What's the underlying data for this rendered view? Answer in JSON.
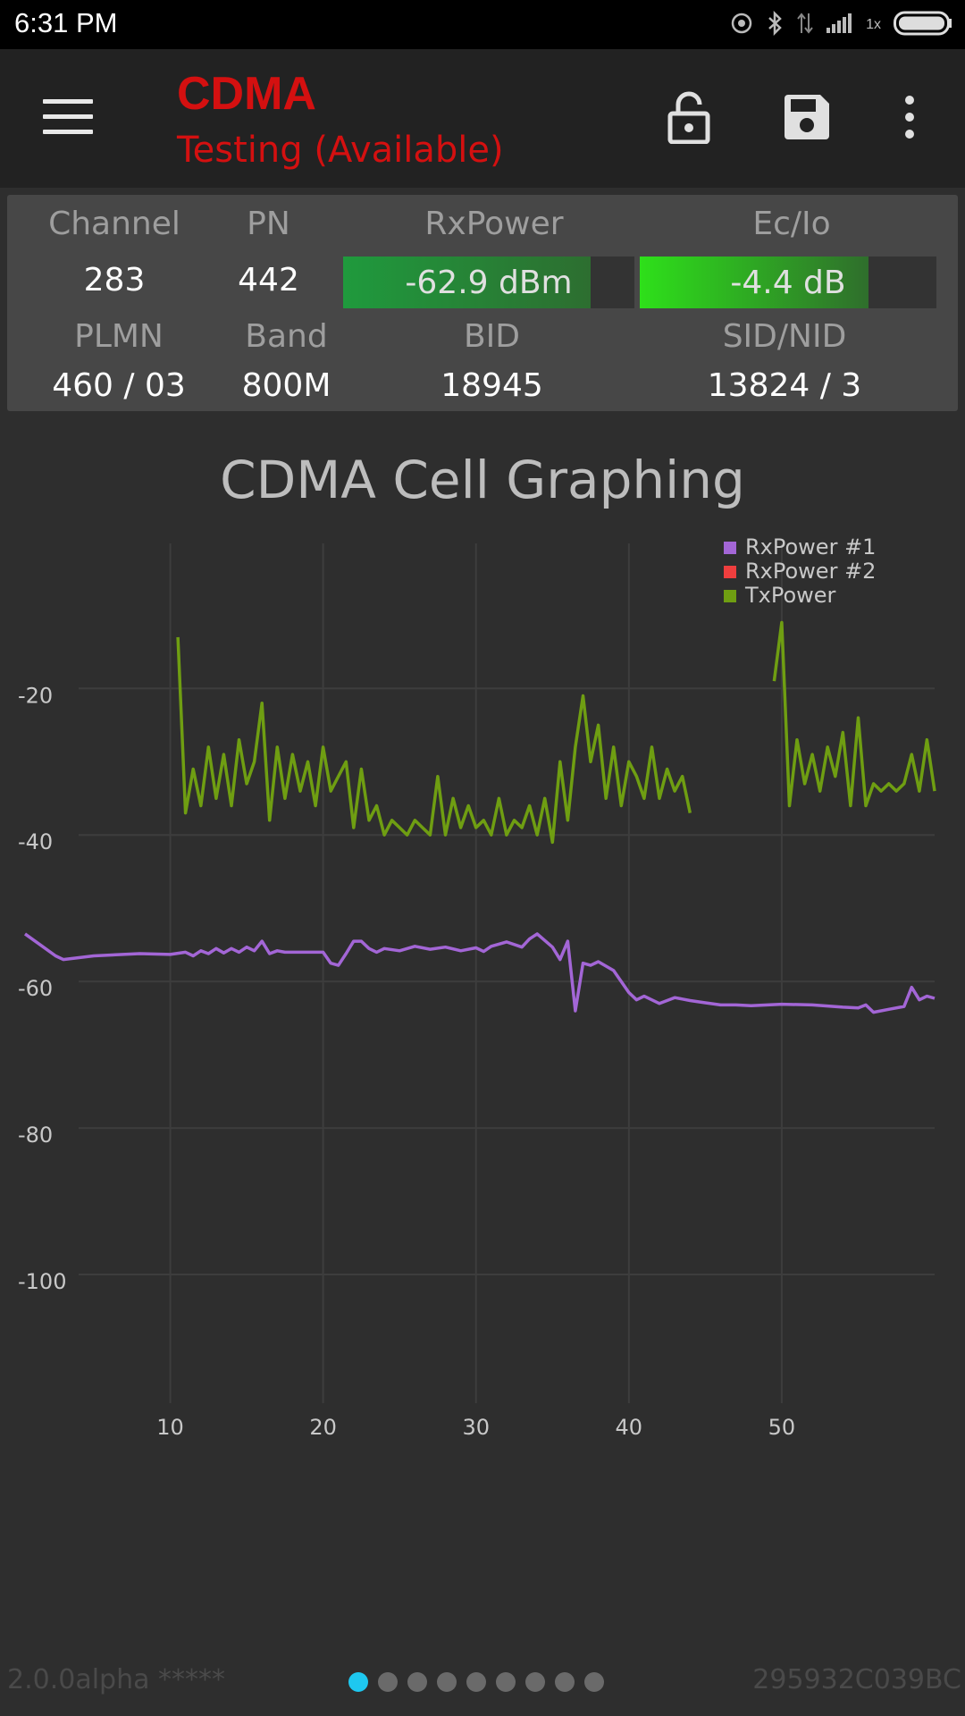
{
  "status_bar": {
    "time": "6:31 PM",
    "network_label": "1x"
  },
  "app_bar": {
    "title": "CDMA",
    "subtitle": "Testing (Available)"
  },
  "panel": {
    "channel": {
      "label": "Channel",
      "value": "283"
    },
    "pn": {
      "label": "PN",
      "value": "442"
    },
    "rxpower": {
      "label": "RxPower",
      "value": "-62.9 dBm",
      "level": 0.85
    },
    "ecio": {
      "label": "Ec/Io",
      "value": "-4.4 dB",
      "level": 0.77
    },
    "plmn": {
      "label": "PLMN",
      "value": "460 / 03"
    },
    "band": {
      "label": "Band",
      "value": "800M"
    },
    "bid": {
      "label": "BID",
      "value": "18945"
    },
    "sidnid": {
      "label": "SID/NID",
      "value": "13824 / 3"
    }
  },
  "colors": {
    "title_red": "#d41010",
    "rx1": "#a366d6",
    "rx2": "#ef3e3e",
    "tx": "#6f9e12",
    "page_dot_active": "#1ec8f0"
  },
  "chart_data": {
    "type": "line",
    "title": "CDMA Cell Graphing",
    "xlim": [
      0.5,
      60
    ],
    "ylim": [
      -120,
      -0.2
    ],
    "xticks": [
      10,
      20,
      30,
      40,
      50
    ],
    "yticks": [
      -20,
      -40,
      -60,
      -80,
      -100
    ],
    "grid": true,
    "legend_position": "top-right",
    "series": [
      {
        "name": "RxPower #1",
        "color": "#a366d6",
        "x": [
          0.5,
          1.5,
          2.5,
          3,
          5,
          8,
          10,
          11,
          11.5,
          12,
          12.5,
          13,
          13.5,
          14,
          14.5,
          15,
          15.5,
          16,
          16.5,
          17,
          17.5,
          18,
          19,
          20,
          20.5,
          21,
          21.5,
          22,
          22.5,
          23,
          23.5,
          24,
          25,
          26,
          27,
          28,
          29,
          30,
          30.5,
          31,
          32,
          33,
          33.5,
          34,
          35,
          35.5,
          36,
          36.5,
          37,
          37.5,
          38,
          39,
          40,
          40.5,
          41,
          42,
          43,
          44,
          45,
          46,
          47,
          48,
          50,
          52,
          54,
          55,
          55.5,
          56,
          57,
          58,
          58.5,
          59,
          59.5,
          60
        ],
        "y": [
          -53.5,
          -55,
          -56.5,
          -57,
          -56.5,
          -56.2,
          -56.3,
          -56,
          -56.5,
          -55.8,
          -56.2,
          -55.5,
          -56.1,
          -55.5,
          -56,
          -55.3,
          -55.8,
          -54.5,
          -56.2,
          -55.8,
          -56,
          -56,
          -56,
          -56,
          -57.5,
          -57.8,
          -56.2,
          -54.5,
          -54.5,
          -55.5,
          -56,
          -55.5,
          -55.8,
          -55.2,
          -55.6,
          -55.3,
          -55.8,
          -55.4,
          -55.9,
          -55.2,
          -54.6,
          -55.3,
          -54.2,
          -53.5,
          -55.3,
          -57,
          -54.5,
          -64,
          -57.5,
          -57.8,
          -57.3,
          -58.5,
          -61.5,
          -62.5,
          -62,
          -63,
          -62.2,
          -62.6,
          -62.9,
          -63.2,
          -63.2,
          -63.3,
          -63.1,
          -63.2,
          -63.5,
          -63.6,
          -63.2,
          -64.2,
          -63.8,
          -63.4,
          -60.8,
          -62.5,
          -62,
          -62.3
        ]
      },
      {
        "name": "RxPower #2",
        "color": "#ef3e3e",
        "x": [],
        "y": []
      },
      {
        "name": "TxPower",
        "color": "#6f9e12",
        "x": [
          10.5,
          11,
          11.5,
          12,
          12.5,
          13,
          13.5,
          14,
          14.5,
          15,
          15.5,
          16,
          16.5,
          17,
          17.5,
          18,
          18.5,
          19,
          19.5,
          20,
          20.5,
          21,
          21.5,
          22,
          22.5,
          23,
          23.5,
          24,
          24.5,
          25,
          25.5,
          26,
          26.5,
          27,
          27.5,
          28,
          28.5,
          29,
          29.5,
          30,
          30.5,
          31,
          31.5,
          32,
          32.5,
          33,
          33.5,
          34,
          34.5,
          35,
          35.5,
          36,
          36.5,
          37,
          37.5,
          38,
          38.5,
          39,
          39.5,
          40,
          40.5,
          41,
          41.5,
          42,
          42.5,
          43,
          43.5,
          44
        ],
        "y": [
          -13,
          -37,
          -31,
          -36,
          -28,
          -35,
          -29,
          -36,
          -27,
          -33,
          -30,
          -22,
          -38,
          -28,
          -35,
          -29,
          -34,
          -30,
          -36,
          -28,
          -34,
          -32,
          -30,
          -39,
          -31,
          -38,
          -36,
          -40,
          -38,
          -39,
          -40,
          -38,
          -39,
          -40,
          -32,
          -40,
          -35,
          -39,
          -36,
          -39,
          -38,
          -40,
          -35,
          -40,
          -38,
          -39,
          -36,
          -40,
          -35,
          -41,
          -30,
          -38,
          -28,
          -21,
          -30,
          -25,
          -35,
          -28,
          -36,
          -30,
          -32,
          -35,
          -28,
          -35,
          -31,
          -34,
          -32,
          -37
        ]
      },
      {
        "name": "TxPower",
        "color": "#6f9e12",
        "x": [
          49.5,
          50,
          50.5,
          51,
          51.5,
          52,
          52.5,
          53,
          53.5,
          54,
          54.5,
          55,
          55.5,
          56,
          56.5,
          57,
          57.5,
          58,
          58.5,
          59,
          59.5,
          60
        ],
        "y": [
          -19,
          -11,
          -36,
          -27,
          -33,
          -29,
          -34,
          -28,
          -32,
          -26,
          -36,
          -24,
          -36,
          -33,
          -34,
          -33,
          -34,
          -33,
          -29,
          -34,
          -27,
          -34
        ]
      }
    ]
  },
  "footer": {
    "version": "2.0.0alpha *****",
    "serial": "295932C039BC",
    "page_count": 9,
    "active_page": 0
  }
}
